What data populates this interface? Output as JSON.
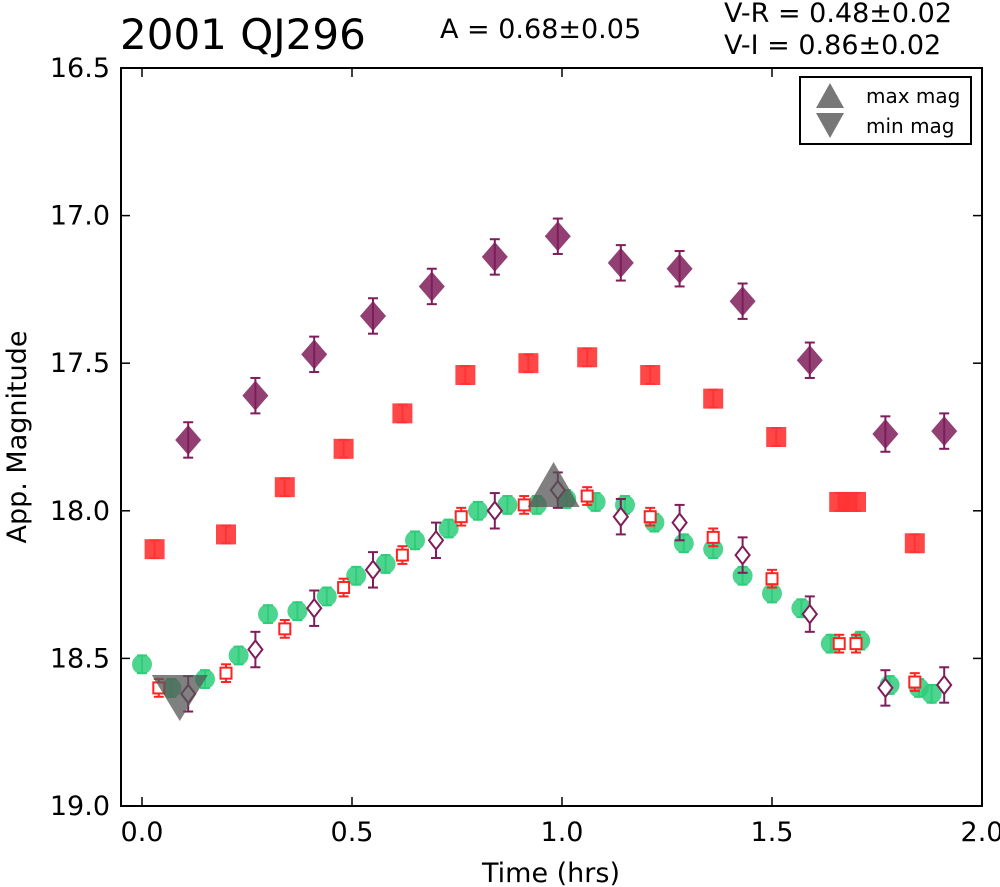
{
  "header": {
    "title": "2001 QJ296",
    "amplitude": "A  = 0.68±0.05",
    "color_vr": "V-R = 0.48±0.02",
    "color_vi": "V-I  = 0.86±0.02"
  },
  "chart_data": {
    "type": "scatter",
    "xlabel": "Time (hrs)",
    "ylabel": "App. Magnitude",
    "xlim": [
      -0.05,
      2.0
    ],
    "ylim": [
      19.0,
      16.5
    ],
    "y_inverted": true,
    "xticks": [
      "0.0",
      "0.5",
      "1.0",
      "1.5",
      "2.0"
    ],
    "xtick_values": [
      0.0,
      0.5,
      1.0,
      1.5,
      2.0
    ],
    "yticks": [
      "16.5",
      "17.0",
      "17.5",
      "18.0",
      "18.5",
      "19.0"
    ],
    "ytick_values": [
      16.5,
      17.0,
      17.5,
      18.0,
      18.5,
      19.0
    ],
    "grid": false,
    "legend_position": "top-right",
    "legend": [
      {
        "label": "max mag",
        "marker": "triangle-up",
        "color": "#777777"
      },
      {
        "label": "min mag",
        "marker": "triangle-down",
        "color": "#777777"
      }
    ],
    "series": [
      {
        "marker": "diamond-filled",
        "color": "#7f1d5a",
        "x": [
          0.11,
          0.27,
          0.41,
          0.55,
          0.69,
          0.84,
          0.99,
          1.14,
          1.28,
          1.43,
          1.59,
          1.77,
          1.91
        ],
        "y": [
          17.76,
          17.61,
          17.47,
          17.34,
          17.24,
          17.14,
          17.07,
          17.16,
          17.18,
          17.29,
          17.49,
          17.74,
          17.73
        ],
        "yerr": 0.06
      },
      {
        "marker": "square-filled",
        "color": "#ff3333",
        "x": [
          0.03,
          0.2,
          0.34,
          0.48,
          0.62,
          0.77,
          0.92,
          1.06,
          1.21,
          1.36,
          1.51,
          1.66,
          1.68,
          1.7,
          1.84
        ],
        "y": [
          18.13,
          18.08,
          17.92,
          17.79,
          17.67,
          17.54,
          17.5,
          17.48,
          17.54,
          17.62,
          17.75,
          17.97,
          17.97,
          17.97,
          18.11
        ],
        "yerr": 0.03
      },
      {
        "marker": "circle-filled",
        "color": "#2ecc7a",
        "x": [
          0.0,
          0.07,
          0.15,
          0.23,
          0.3,
          0.37,
          0.44,
          0.51,
          0.58,
          0.65,
          0.73,
          0.8,
          0.87,
          0.94,
          1.01,
          1.08,
          1.15,
          1.22,
          1.29,
          1.36,
          1.43,
          1.5,
          1.57,
          1.64,
          1.71,
          1.78,
          1.85,
          1.88
        ],
        "y": [
          18.52,
          18.6,
          18.57,
          18.49,
          18.35,
          18.34,
          18.29,
          18.22,
          18.18,
          18.1,
          18.06,
          18.0,
          17.98,
          17.98,
          17.96,
          17.97,
          17.98,
          18.04,
          18.11,
          18.13,
          18.22,
          18.28,
          18.33,
          18.45,
          18.44,
          18.59,
          18.6,
          18.62
        ],
        "yerr": 0.03
      },
      {
        "marker": "square-open",
        "color": "#ff2222",
        "x": [
          0.04,
          0.2,
          0.34,
          0.48,
          0.62,
          0.76,
          0.91,
          1.06,
          1.21,
          1.36,
          1.5,
          1.66,
          1.7,
          1.84
        ],
        "y": [
          18.6,
          18.55,
          18.4,
          18.26,
          18.15,
          18.02,
          17.98,
          17.95,
          18.02,
          18.09,
          18.23,
          18.45,
          18.45,
          18.58
        ],
        "yerr": 0.03
      },
      {
        "marker": "diamond-open",
        "color": "#7f1d5a",
        "x": [
          0.11,
          0.27,
          0.41,
          0.55,
          0.7,
          0.84,
          0.99,
          1.14,
          1.28,
          1.43,
          1.59,
          1.77,
          1.91
        ],
        "y": [
          18.62,
          18.47,
          18.33,
          18.2,
          18.1,
          18.0,
          17.93,
          18.02,
          18.04,
          18.15,
          18.35,
          18.6,
          18.59
        ],
        "yerr": 0.06
      },
      {
        "marker": "triangle-up-large",
        "color": "#555555",
        "x": [
          0.98
        ],
        "y": [
          17.95
        ]
      },
      {
        "marker": "triangle-down-large",
        "color": "#555555",
        "x": [
          0.09
        ],
        "y": [
          18.59
        ]
      }
    ]
  }
}
